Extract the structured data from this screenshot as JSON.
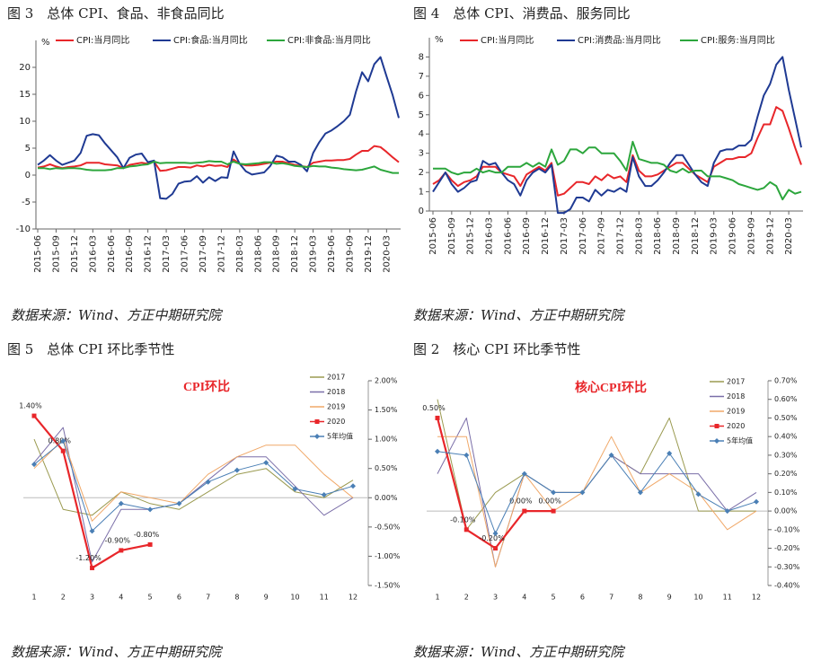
{
  "chart_data": [
    {
      "type": "line",
      "title": "图 3　总体 CPI、食品、非食品同比",
      "source": "数据来源：Wind、方正中期研究院",
      "y_unit": "%",
      "categories": [
        "2015-06",
        null,
        null,
        "2015-09",
        null,
        null,
        "2015-12",
        null,
        null,
        "2016-03",
        null,
        null,
        "2016-06",
        null,
        null,
        "2016-09",
        null,
        null,
        "2016-12",
        null,
        null,
        "2017-03",
        null,
        null,
        "2017-06",
        null,
        null,
        "2017-09",
        null,
        null,
        "2017-12",
        null,
        null,
        "2018-03",
        null,
        null,
        "2018-06",
        null,
        null,
        "2018-09",
        null,
        null,
        "2018-12",
        null,
        null,
        "2019-03",
        null,
        null,
        "2019-06",
        null,
        null,
        "2019-09",
        null,
        null,
        "2019-12",
        null,
        null,
        "2020-03",
        null,
        null
      ],
      "ylim": [
        -10,
        25
      ],
      "yticks": [
        -10,
        -5,
        0,
        5,
        10,
        15,
        20
      ],
      "legend": "top",
      "series": [
        {
          "name": "CPI:当月同比",
          "color": "#e8262a",
          "values": [
            1.4,
            1.6,
            2.0,
            1.6,
            1.3,
            1.5,
            1.6,
            1.8,
            2.3,
            2.3,
            2.3,
            2.0,
            1.9,
            1.8,
            1.3,
            1.9,
            2.1,
            2.3,
            2.1,
            2.5,
            0.8,
            0.9,
            1.2,
            1.5,
            1.5,
            1.4,
            1.8,
            1.6,
            1.9,
            1.7,
            1.8,
            1.5,
            2.9,
            2.1,
            1.8,
            1.8,
            1.9,
            2.1,
            2.3,
            2.5,
            2.5,
            2.2,
            1.9,
            1.7,
            1.5,
            2.3,
            2.5,
            2.7,
            2.7,
            2.8,
            2.8,
            3.0,
            3.8,
            4.5,
            4.5,
            5.4,
            5.2,
            4.3,
            3.3,
            2.4
          ]
        },
        {
          "name": "CPI:食品:当月同比",
          "color": "#1f3a93",
          "values": [
            1.9,
            2.7,
            3.7,
            2.7,
            1.9,
            2.3,
            2.7,
            4.1,
            7.3,
            7.6,
            7.4,
            5.9,
            4.6,
            3.3,
            1.3,
            3.2,
            3.8,
            4.0,
            2.4,
            2.7,
            -4.3,
            -4.4,
            -3.5,
            -1.6,
            -1.2,
            -1.1,
            -0.2,
            -1.4,
            -0.4,
            -1.1,
            -0.4,
            -0.5,
            4.4,
            2.1,
            0.7,
            0.1,
            0.3,
            0.5,
            1.7,
            3.6,
            3.3,
            2.5,
            2.5,
            1.9,
            0.7,
            4.1,
            6.1,
            7.7,
            8.3,
            9.1,
            10.0,
            11.2,
            15.5,
            19.1,
            17.4,
            20.6,
            21.9,
            18.3,
            14.8,
            10.6
          ]
        },
        {
          "name": "CPI:非食品:当月同比",
          "color": "#2ca63c",
          "values": [
            1.3,
            1.3,
            1.1,
            1.3,
            1.2,
            1.3,
            1.3,
            1.2,
            1.0,
            0.9,
            0.9,
            0.9,
            1.0,
            1.3,
            1.3,
            1.6,
            1.7,
            1.9,
            2.0,
            2.5,
            2.2,
            2.3,
            2.3,
            2.3,
            2.3,
            2.2,
            2.3,
            2.4,
            2.6,
            2.5,
            2.5,
            2.0,
            2.5,
            2.1,
            2.0,
            2.1,
            2.2,
            2.4,
            2.4,
            2.1,
            2.2,
            2.0,
            1.7,
            1.6,
            1.5,
            1.7,
            1.6,
            1.6,
            1.4,
            1.3,
            1.1,
            1.0,
            0.9,
            1.0,
            1.3,
            1.6,
            1.0,
            0.7,
            0.4,
            0.4
          ]
        }
      ]
    },
    {
      "type": "line",
      "title": "图 4　总体 CPI、消费品、服务同比",
      "source": "数据来源：Wind、方正中期研究院",
      "y_unit": "%",
      "categories": [
        "2015-06",
        null,
        null,
        "2015-09",
        null,
        null,
        "2015-12",
        null,
        null,
        "2016-03",
        null,
        null,
        "2016-06",
        null,
        null,
        "2016-09",
        null,
        null,
        "2016-12",
        null,
        null,
        "2017-03",
        null,
        null,
        "2017-06",
        null,
        null,
        "2017-09",
        null,
        null,
        "2017-12",
        null,
        null,
        "2018-03",
        null,
        null,
        "2018-06",
        null,
        null,
        "2018-09",
        null,
        null,
        "2018-12",
        null,
        null,
        "2019-03",
        null,
        null,
        "2019-06",
        null,
        null,
        "2019-09",
        null,
        null,
        "2019-12",
        null,
        null,
        "2020-03",
        null,
        null
      ],
      "ylim": [
        0,
        9
      ],
      "yticks": [
        0,
        1,
        2,
        3,
        4,
        5,
        6,
        7,
        8
      ],
      "legend": "top",
      "series": [
        {
          "name": "CPI:当月同比",
          "color": "#e8262a",
          "values": [
            1.4,
            1.6,
            2.0,
            1.6,
            1.3,
            1.5,
            1.6,
            1.8,
            2.3,
            2.3,
            2.3,
            2.0,
            1.9,
            1.8,
            1.3,
            1.9,
            2.1,
            2.3,
            2.1,
            2.5,
            0.8,
            0.9,
            1.2,
            1.5,
            1.5,
            1.4,
            1.8,
            1.6,
            1.9,
            1.7,
            1.8,
            1.5,
            2.9,
            2.1,
            1.8,
            1.8,
            1.9,
            2.1,
            2.3,
            2.5,
            2.5,
            2.2,
            1.9,
            1.7,
            1.5,
            2.3,
            2.5,
            2.7,
            2.7,
            2.8,
            2.8,
            3.0,
            3.8,
            4.5,
            4.5,
            5.4,
            5.2,
            4.3,
            3.3,
            2.4
          ]
        },
        {
          "name": "CPI:消费品:当月同比",
          "color": "#1f3a93",
          "values": [
            1.0,
            1.5,
            2.0,
            1.4,
            1.0,
            1.2,
            1.5,
            1.6,
            2.6,
            2.4,
            2.5,
            2.0,
            1.6,
            1.4,
            0.8,
            1.6,
            2.0,
            2.2,
            2.0,
            2.4,
            -0.1,
            -0.1,
            0.1,
            0.7,
            0.7,
            0.5,
            1.1,
            0.8,
            1.1,
            1.0,
            1.2,
            1.0,
            2.8,
            1.8,
            1.3,
            1.3,
            1.6,
            2.0,
            2.5,
            2.9,
            2.9,
            2.4,
            1.9,
            1.5,
            1.3,
            2.5,
            3.1,
            3.2,
            3.2,
            3.4,
            3.4,
            3.7,
            4.9,
            6.0,
            6.6,
            7.6,
            8.0,
            6.3,
            4.8,
            3.3
          ]
        },
        {
          "name": "CPI:服务:当月同比",
          "color": "#2ca63c",
          "values": [
            2.2,
            2.2,
            2.2,
            2.0,
            1.9,
            2.0,
            2.0,
            2.2,
            2.0,
            2.1,
            2.0,
            2.0,
            2.3,
            2.3,
            2.3,
            2.5,
            2.3,
            2.5,
            2.3,
            3.2,
            2.4,
            2.6,
            3.2,
            3.2,
            3.0,
            3.3,
            3.3,
            3.0,
            3.0,
            3.0,
            2.6,
            2.1,
            3.6,
            2.7,
            2.6,
            2.5,
            2.5,
            2.4,
            2.1,
            2.0,
            2.2,
            2.0,
            2.1,
            2.1,
            1.8,
            1.8,
            1.8,
            1.7,
            1.6,
            1.4,
            1.3,
            1.2,
            1.1,
            1.2,
            1.5,
            1.3,
            0.6,
            1.1,
            0.9,
            1.0
          ]
        }
      ]
    },
    {
      "type": "line",
      "title": "图 5　总体 CPI 环比季节性",
      "source": "数据来源：Wind、方正中期研究院",
      "inner_title": "CPI环比",
      "categories": [
        1,
        2,
        3,
        4,
        5,
        6,
        7,
        8,
        9,
        10,
        11,
        12
      ],
      "y_axis_side": "right",
      "legend": "upper right",
      "ylim": [
        -1.5,
        2
      ],
      "yticks": [
        {
          "value": -1.5,
          "label": "-1.50%"
        },
        {
          "value": -1,
          "label": "-1.00%"
        },
        {
          "value": -0.5,
          "label": "-0.50%"
        },
        {
          "value": 0,
          "label": "0.00%"
        },
        {
          "value": 0.5,
          "label": "0.50%"
        },
        {
          "value": 1,
          "label": "1.00%"
        },
        {
          "value": 1.5,
          "label": "1.50%"
        },
        {
          "value": 2,
          "label": "2.00%"
        }
      ],
      "series": [
        {
          "name": "2017",
          "color": "#9a9a50",
          "values": [
            1.0,
            -0.2,
            -0.3,
            0.1,
            -0.1,
            -0.2,
            0.1,
            0.4,
            0.5,
            0.1,
            0.0,
            0.3
          ]
        },
        {
          "name": "2018",
          "color": "#7a6ea8",
          "values": [
            0.6,
            1.2,
            -1.1,
            -0.2,
            -0.2,
            -0.1,
            0.3,
            0.7,
            0.7,
            0.2,
            -0.3,
            0.0
          ]
        },
        {
          "name": "2019",
          "color": "#f0a868",
          "values": [
            0.5,
            1.0,
            -0.4,
            0.1,
            0.0,
            -0.1,
            0.4,
            0.7,
            0.9,
            0.9,
            0.4,
            0.0
          ]
        },
        {
          "name": "2020",
          "color": "#e8262a",
          "marker": "square",
          "values": [
            1.4,
            0.8,
            -1.2,
            -0.9,
            -0.8,
            null,
            null,
            null,
            null,
            null,
            null,
            null
          ],
          "value_labels": [
            "1.40%",
            "0.80%",
            "-1.20%",
            "-0.90%",
            "-0.80%",
            null,
            null,
            null,
            null,
            null,
            null,
            null
          ]
        },
        {
          "name": "5年均值",
          "color": "#4a7fb5",
          "marker": "diamond",
          "values": [
            0.57,
            0.97,
            -0.57,
            -0.1,
            -0.2,
            -0.1,
            0.27,
            0.47,
            0.6,
            0.15,
            0.05,
            0.2
          ]
        }
      ]
    },
    {
      "type": "line",
      "title": "图 2　核心 CPI 环比季节性",
      "source": "数据来源：Wind、方正中期研究院",
      "inner_title": "核心CPI环比",
      "categories": [
        1,
        2,
        3,
        4,
        5,
        6,
        7,
        8,
        9,
        10,
        11,
        12
      ],
      "y_axis_side": "right",
      "legend": "upper right",
      "ylim": [
        -0.4,
        0.7
      ],
      "yticks": [
        {
          "value": -0.4,
          "label": "-0.40%"
        },
        {
          "value": -0.3,
          "label": "-0.30%"
        },
        {
          "value": -0.2,
          "label": "-0.20%"
        },
        {
          "value": -0.1,
          "label": "-0.10%"
        },
        {
          "value": 0,
          "label": "0.00%"
        },
        {
          "value": 0.1,
          "label": "0.10%"
        },
        {
          "value": 0.2,
          "label": "0.20%"
        },
        {
          "value": 0.3,
          "label": "0.30%"
        },
        {
          "value": 0.4,
          "label": "0.40%"
        },
        {
          "value": 0.5,
          "label": "0.50%"
        },
        {
          "value": 0.6,
          "label": "0.60%"
        },
        {
          "value": 0.7,
          "label": "0.70%"
        }
      ],
      "series": [
        {
          "name": "2017",
          "color": "#9a9a50",
          "values": [
            0.6,
            -0.1,
            0.1,
            0.2,
            0.1,
            0.1,
            0.3,
            0.2,
            0.5,
            0.0,
            0.0,
            0.0
          ]
        },
        {
          "name": "2018",
          "color": "#7a6ea8",
          "values": [
            0.2,
            0.5,
            -0.3,
            0.2,
            0.1,
            0.1,
            0.3,
            0.2,
            0.2,
            0.2,
            0.0,
            0.1
          ]
        },
        {
          "name": "2019",
          "color": "#f0a868",
          "values": [
            0.4,
            0.4,
            -0.3,
            0.2,
            0.0,
            0.1,
            0.4,
            0.1,
            0.2,
            0.1,
            -0.1,
            0.0
          ]
        },
        {
          "name": "2020",
          "color": "#e8262a",
          "marker": "square",
          "values": [
            0.5,
            -0.1,
            -0.2,
            0.0,
            0.0,
            null,
            null,
            null,
            null,
            null,
            null,
            null
          ],
          "value_labels": [
            "0.50%",
            "-0.10%",
            "-0.20%",
            "0.00%",
            "0.00%",
            null,
            null,
            null,
            null,
            null,
            null,
            null
          ]
        },
        {
          "name": "5年均值",
          "color": "#4a7fb5",
          "marker": "diamond",
          "values": [
            0.32,
            0.3,
            -0.12,
            0.2,
            0.1,
            0.1,
            0.3,
            0.1,
            0.31,
            0.09,
            0.0,
            0.05
          ]
        }
      ]
    }
  ]
}
